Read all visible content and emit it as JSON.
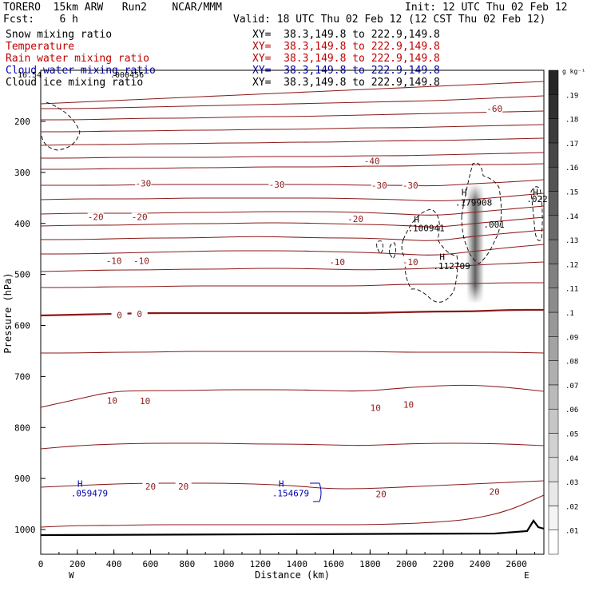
{
  "header": {
    "model": "TORERO  15km ARW   Run2    NCAR/MMM",
    "init": "Init: 12 UTC Thu 02 Feb 12",
    "fcst": "Fcst:    6 h",
    "valid": "Valid: 18 UTC Thu 02 Feb 12 (12 CST Thu 02 Feb 12)"
  },
  "legend": [
    {
      "label": "Snow mixing ratio",
      "xy": "XY=  38.3,149.8 to 222.9,149.8",
      "color": "#000000"
    },
    {
      "label": "Temperature",
      "xy": "XY=  38.3,149.8 to 222.9,149.8",
      "color": "#c00000"
    },
    {
      "label": "Rain water mixing ratio",
      "xy": "XY=  38.3,149.8 to 222.9,149.8",
      "color": "#c00000"
    },
    {
      "label": "Cloud water mixing ratio",
      "xy": "XY=  38.3,149.8 to 222.9,149.8",
      "color": "#0000b0"
    },
    {
      "label": "Cloud ice mixing ratio",
      "xy": "XY=  38.3,149.8 to 222.9,149.8",
      "color": "#000000"
    }
  ],
  "overlap_text": [
    "16.54",
    ".000456"
  ],
  "chart_data": {
    "type": "cross-section contour",
    "xlabel": "Distance (km)",
    "ylabel": "Pressure (hPa)",
    "xlim": [
      0,
      2750
    ],
    "ylim": [
      1050,
      100
    ],
    "x_ticks": [
      0,
      200,
      400,
      600,
      800,
      1000,
      1200,
      1400,
      1600,
      1800,
      2000,
      2200,
      2400,
      2600
    ],
    "y_ticks": [
      200,
      300,
      400,
      500,
      600,
      700,
      800,
      900,
      1000
    ],
    "end_labels": {
      "west": "W",
      "east": "E"
    },
    "isotherm_labels": [
      {
        "x": 2480,
        "p": 180,
        "text": "-60"
      },
      {
        "x": 1810,
        "p": 282,
        "text": "-40"
      },
      {
        "x": 560,
        "p": 326,
        "text": "-30"
      },
      {
        "x": 1290,
        "p": 328,
        "text": "-30"
      },
      {
        "x": 1850,
        "p": 330,
        "text": "-30"
      },
      {
        "x": 2020,
        "p": 330,
        "text": "-30"
      },
      {
        "x": 300,
        "p": 392,
        "text": "-20"
      },
      {
        "x": 540,
        "p": 392,
        "text": "-20"
      },
      {
        "x": 1720,
        "p": 396,
        "text": "-20"
      },
      {
        "x": 400,
        "p": 478,
        "text": "-10"
      },
      {
        "x": 550,
        "p": 478,
        "text": "-10"
      },
      {
        "x": 1620,
        "p": 480,
        "text": "-10"
      },
      {
        "x": 2020,
        "p": 480,
        "text": "-10"
      },
      {
        "x": 430,
        "p": 584,
        "text": "0"
      },
      {
        "x": 540,
        "p": 582,
        "text": "0"
      },
      {
        "x": 390,
        "p": 752,
        "text": "10"
      },
      {
        "x": 570,
        "p": 753,
        "text": "10"
      },
      {
        "x": 1830,
        "p": 766,
        "text": "10"
      },
      {
        "x": 2010,
        "p": 760,
        "text": "10"
      },
      {
        "x": 600,
        "p": 920,
        "text": "20"
      },
      {
        "x": 780,
        "p": 920,
        "text": "20"
      },
      {
        "x": 1860,
        "p": 935,
        "text": "20"
      },
      {
        "x": 2480,
        "p": 930,
        "text": "20"
      }
    ],
    "maxima": [
      {
        "x": 200,
        "p": 916,
        "hp": 935,
        "value": ".059479",
        "color": "#0000b0"
      },
      {
        "x": 1300,
        "p": 916,
        "hp": 935,
        "value": ".154679",
        "color": "#0000b0"
      },
      {
        "x": 2040,
        "p": 398,
        "hp": 415,
        "value": ".100941",
        "color": "#000000"
      },
      {
        "x": 2180,
        "p": 472,
        "hp": 490,
        "value": ".112709",
        "color": "#000000"
      },
      {
        "x": 2300,
        "p": 345,
        "hp": 365,
        "value": ".179908",
        "color": "#000000"
      },
      {
        "x": 2690,
        "p": 345,
        "hp": 358,
        "value": ".022",
        "color": "#000000"
      }
    ],
    "minor_label": {
      "x": 2420,
      "p": 408,
      "text": ".001"
    },
    "colorbar": {
      "unit": "g kg⁻¹",
      "levels": [
        0.01,
        0.02,
        0.03,
        0.04,
        0.05,
        0.06,
        0.07,
        0.08,
        0.09,
        0.1,
        0.11,
        0.12,
        0.13,
        0.14,
        0.15,
        0.16,
        0.17,
        0.18,
        0.19
      ],
      "labels": [
        ".01",
        ".02",
        ".03",
        ".04",
        ".05",
        ".06",
        ".07",
        ".08",
        ".09",
        ".1",
        ".11",
        ".12",
        ".13",
        ".14",
        ".15",
        ".16",
        ".17",
        ".18",
        ".19"
      ]
    }
  }
}
